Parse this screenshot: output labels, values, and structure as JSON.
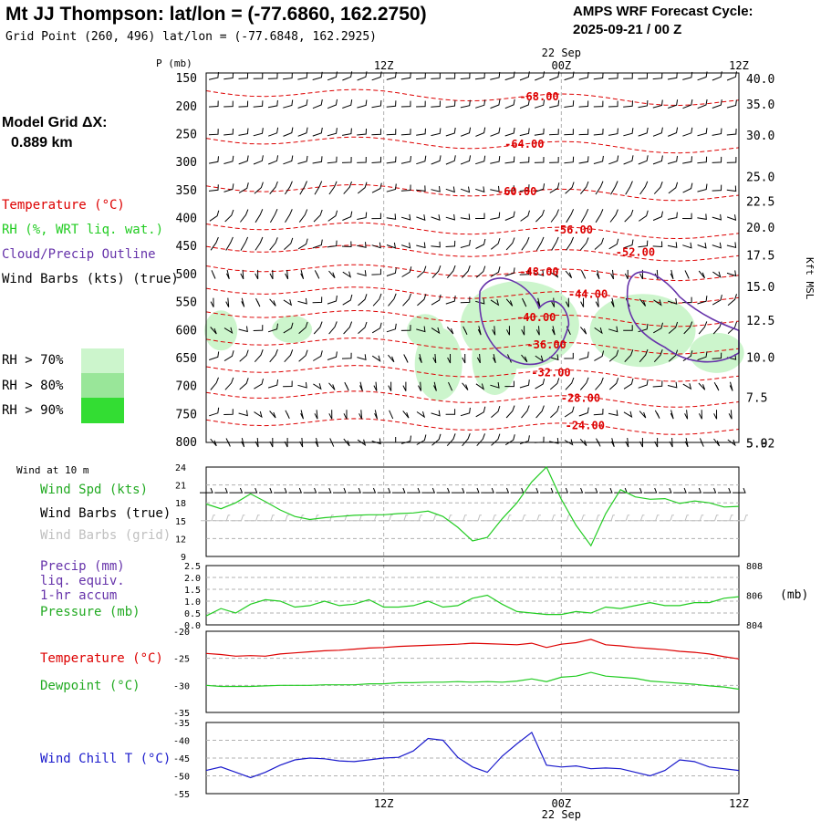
{
  "header": {
    "title": "Mt JJ Thompson:  lat/lon = (-77.6860, 162.2750)",
    "grid_point": "Grid Point (260, 496) lat/lon = (-77.6848, 162.2925)",
    "cycle_label": "AMPS WRF Forecast Cycle:",
    "cycle_value": "2025-09-21 / 00  Z"
  },
  "left_panel": {
    "model_grid_label": "Model Grid ΔX:",
    "model_grid_value": "0.889 km",
    "legend_temperature": "Temperature (°C)",
    "legend_rh": "RH (%, WRT liq. wat.)",
    "legend_cloud": "Cloud/Precip Outline",
    "legend_wind": "Wind Barbs (kts) (true)",
    "rh_levels": [
      "RH > 70%",
      "RH > 80%",
      "RH > 90%"
    ]
  },
  "colors": {
    "temperature": "#dd0000",
    "rh70": "#ccf5cc",
    "rh80": "#99e699",
    "rh90": "#33dd33",
    "cloud": "#6633aa",
    "green_line": "#22cc22",
    "blue_line": "#1a1acc",
    "grid": "#b0b0b0"
  },
  "time_axis": {
    "top_date": "22 Sep",
    "bottom_date": "22 Sep",
    "tick_labels": [
      "12Z",
      "00Z",
      "12Z"
    ]
  },
  "chart_data": [
    {
      "type": "contour",
      "name": "sounding",
      "pressure_label": "P (mb)",
      "pressure_levels": [
        150,
        200,
        250,
        300,
        350,
        400,
        450,
        500,
        550,
        600,
        650,
        700,
        750,
        800
      ],
      "pressure_range": [
        140,
        800
      ],
      "right_axis_label": "Kft MSL",
      "height_ticks": [
        {
          "label": "40.0",
          "p": 150
        },
        {
          "label": "35.0",
          "p": 195
        },
        {
          "label": "30.0",
          "p": 251
        },
        {
          "label": "25.0",
          "p": 325
        },
        {
          "label": "22.5",
          "p": 369
        },
        {
          "label": "20.0",
          "p": 415
        },
        {
          "label": "17.5",
          "p": 465
        },
        {
          "label": "15.0",
          "p": 521
        },
        {
          "label": "12.5",
          "p": 582
        },
        {
          "label": "10.0",
          "p": 648
        },
        {
          "label": "7.5",
          "p": 719
        },
        {
          "label": "5.0",
          "p": 801
        },
        {
          "label": "5.92",
          "p": 801
        }
      ],
      "isotherm_labels": [
        {
          "text": "-68.00",
          "hour": 22.5,
          "p": 182
        },
        {
          "text": "-64.00",
          "hour": 21.5,
          "p": 267
        },
        {
          "text": "-60.00",
          "hour": 21.0,
          "p": 352
        },
        {
          "text": "-56.00",
          "hour": 24.8,
          "p": 420
        },
        {
          "text": "-52.00",
          "hour": 29.0,
          "p": 460
        },
        {
          "text": "-48.00",
          "hour": 22.5,
          "p": 495
        },
        {
          "text": "-44.00",
          "hour": 25.8,
          "p": 535
        },
        {
          "text": "-40.00",
          "hour": 22.3,
          "p": 577
        },
        {
          "text": "-36.00",
          "hour": 23.0,
          "p": 626
        },
        {
          "text": "-32.00",
          "hour": 23.3,
          "p": 675
        },
        {
          "text": "-28.00",
          "hour": 25.3,
          "p": 721
        },
        {
          "text": "-24.00",
          "hour": 25.6,
          "p": 770
        }
      ]
    },
    {
      "type": "line",
      "name": "wind10m",
      "panel_label": "Wind at 10 m",
      "labels": [
        "Wind Spd (kts)",
        "Wind Barbs (true)",
        "Wind Barbs (grid)"
      ],
      "yticks": [
        9,
        12,
        15,
        18,
        21,
        24
      ],
      "ylim": [
        9,
        24
      ],
      "x": [
        0,
        1,
        2,
        3,
        4,
        5,
        6,
        7,
        8,
        9,
        10,
        11,
        12,
        13,
        14,
        15,
        16,
        17,
        18,
        19,
        20,
        21,
        22,
        23,
        24,
        25,
        26,
        27,
        28,
        29,
        30,
        31,
        32,
        33,
        34,
        35,
        36
      ],
      "values": [
        17.8,
        17.0,
        18.0,
        19.5,
        18.2,
        16.8,
        15.7,
        15.2,
        15.5,
        15.7,
        15.9,
        16.0,
        16.0,
        16.2,
        16.3,
        16.6,
        15.7,
        13.9,
        11.6,
        12.2,
        15.3,
        18.0,
        21.5,
        24.0,
        18.6,
        14.2,
        10.8,
        16.2,
        20.2,
        19.0,
        18.6,
        18.7,
        17.9,
        18.3,
        18.0,
        17.3,
        17.4
      ]
    },
    {
      "type": "line",
      "name": "pressure",
      "labels": [
        "Precip (mm)",
        "liq. equiv.",
        "1-hr accum",
        "Pressure (mb)"
      ],
      "left_ticks": [
        "0.0",
        "0.5",
        "1.0",
        "1.5",
        "2.0",
        "2.5"
      ],
      "ylim_left": [
        0,
        2.5
      ],
      "right_ticks": [
        "804",
        "806",
        "808"
      ],
      "ylim_right": [
        804,
        808
      ],
      "right_unit": "(mb)",
      "x": [
        0,
        1,
        2,
        3,
        4,
        5,
        6,
        7,
        8,
        9,
        10,
        11,
        12,
        13,
        14,
        15,
        16,
        17,
        18,
        19,
        20,
        21,
        22,
        23,
        24,
        25,
        26,
        27,
        28,
        29,
        30,
        31,
        32,
        33,
        34,
        35,
        36
      ],
      "values": [
        804.6,
        805.1,
        804.8,
        805.4,
        805.7,
        805.6,
        805.2,
        805.3,
        805.6,
        805.3,
        805.4,
        805.7,
        805.2,
        805.2,
        805.3,
        805.6,
        805.2,
        805.3,
        805.8,
        806.0,
        805.4,
        804.9,
        804.8,
        804.7,
        804.7,
        804.9,
        804.8,
        805.2,
        805.1,
        805.3,
        805.5,
        805.3,
        805.3,
        805.5,
        805.5,
        805.8,
        805.9
      ]
    },
    {
      "type": "line",
      "name": "temperature",
      "series": [
        {
          "name": "Temperature (°C)",
          "values": [
            -24.1,
            -24.3,
            -24.6,
            -24.5,
            -24.6,
            -24.2,
            -24.0,
            -23.8,
            -23.6,
            -23.5,
            -23.3,
            -23.1,
            -23.0,
            -22.8,
            -22.7,
            -22.6,
            -22.5,
            -22.4,
            -22.2,
            -22.3,
            -22.4,
            -22.5,
            -22.2,
            -23.0,
            -22.4,
            -22.1,
            -21.5,
            -22.5,
            -22.7,
            -23.0,
            -23.2,
            -23.4,
            -23.7,
            -23.9,
            -24.2,
            -24.7,
            -25.1
          ]
        },
        {
          "name": "Dewpoint (°C)",
          "values": [
            -30.0,
            -30.2,
            -30.2,
            -30.2,
            -30.1,
            -30.0,
            -30.0,
            -30.0,
            -29.9,
            -29.9,
            -29.9,
            -29.7,
            -29.7,
            -29.5,
            -29.5,
            -29.4,
            -29.4,
            -29.3,
            -29.4,
            -29.3,
            -29.4,
            -29.2,
            -28.8,
            -29.3,
            -28.5,
            -28.3,
            -27.6,
            -28.3,
            -28.5,
            -28.7,
            -29.2,
            -29.4,
            -29.6,
            -29.8,
            -30.1,
            -30.3,
            -30.7
          ]
        }
      ],
      "yticks": [
        -20,
        -25,
        -30,
        -35
      ],
      "ylim": [
        -35,
        -20
      ]
    },
    {
      "type": "line",
      "name": "windchill",
      "series": [
        {
          "name": "Wind Chill T (°C)",
          "values": [
            -48.5,
            -47.5,
            -49.0,
            -50.5,
            -49.0,
            -47.0,
            -45.5,
            -45.0,
            -45.2,
            -45.8,
            -46.0,
            -45.5,
            -45.0,
            -44.8,
            -43.0,
            -39.5,
            -40.0,
            -44.8,
            -47.5,
            -49.0,
            -44.5,
            -41.0,
            -37.8,
            -47.0,
            -47.5,
            -47.2,
            -48.0,
            -47.8,
            -48.0,
            -49.0,
            -50.0,
            -48.5,
            -45.5,
            -46.0,
            -47.5,
            -48.0,
            -48.5
          ]
        }
      ],
      "yticks": [
        -35,
        -40,
        -45,
        -50,
        -55
      ],
      "ylim": [
        -55,
        -35
      ]
    }
  ]
}
